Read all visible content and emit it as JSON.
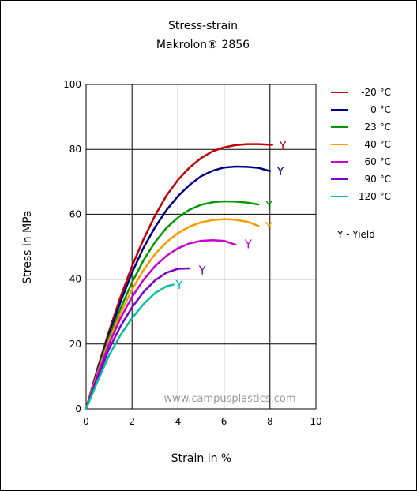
{
  "chart_data": {
    "type": "line",
    "title": "Stress-strain",
    "subtitle": "Makrolon® 2856",
    "xlabel": "Strain in %",
    "ylabel": "Stress in MPa",
    "xlim": [
      0,
      10
    ],
    "ylim": [
      0,
      100
    ],
    "x_ticks": [
      "0",
      "2",
      "4",
      "6",
      "8",
      "10"
    ],
    "y_ticks": [
      "0",
      "20",
      "40",
      "60",
      "80",
      "100"
    ],
    "grid": true,
    "legend_position": "right",
    "yield_marker": "Y",
    "yield_note": "Y - Yield",
    "watermark": "www.campusplastics.com",
    "series": [
      {
        "name": "-20 °C",
        "color": "#c00000",
        "x": [
          0,
          0.5,
          1,
          1.5,
          2,
          2.5,
          3,
          3.5,
          4,
          4.5,
          5,
          5.5,
          6,
          6.5,
          7,
          7.5,
          8.1
        ],
        "y": [
          0,
          12.5,
          24,
          34.5,
          44,
          52.3,
          59.6,
          65.8,
          70.6,
          74.4,
          77.3,
          79.4,
          80.6,
          81.3,
          81.6,
          81.6,
          81.4
        ],
        "yield": [
          8.4,
          81.4
        ]
      },
      {
        "name": "0 °C",
        "color": "#000080",
        "x": [
          0,
          0.5,
          1,
          1.5,
          2,
          2.5,
          3,
          3.5,
          4,
          4.5,
          5,
          5.5,
          6,
          6.5,
          7,
          7.5,
          8
        ],
        "y": [
          0,
          12,
          23,
          33,
          42,
          49.7,
          56,
          61.3,
          65.6,
          69,
          71.7,
          73.4,
          74.4,
          74.7,
          74.6,
          74.3,
          73.3
        ],
        "yield": [
          8.3,
          73.5
        ]
      },
      {
        "name": "23 °C",
        "color": "#009900",
        "x": [
          0,
          0.5,
          1,
          1.5,
          2,
          2.5,
          3,
          3.5,
          4,
          4.5,
          5,
          5.5,
          6,
          6.5,
          7,
          7.5
        ],
        "y": [
          0,
          11.5,
          22,
          31,
          39,
          45.8,
          51.4,
          55.8,
          59,
          61.4,
          62.9,
          63.7,
          64,
          63.9,
          63.6,
          63
        ],
        "yield": [
          7.8,
          63
        ]
      },
      {
        "name": "40 °C",
        "color": "#ff9900",
        "x": [
          0,
          0.5,
          1,
          1.5,
          2,
          2.5,
          3,
          3.5,
          4,
          4.5,
          5,
          5.5,
          6,
          6.5,
          7,
          7.5
        ],
        "y": [
          0,
          11,
          21,
          29.5,
          36.8,
          42.8,
          47.7,
          51.4,
          54.2,
          56.2,
          57.5,
          58.2,
          58.5,
          58.3,
          57.7,
          56.4
        ],
        "yield": [
          7.8,
          56.5
        ]
      },
      {
        "name": "60 °C",
        "color": "#cc00cc",
        "x": [
          0,
          0.5,
          1,
          1.5,
          2,
          2.5,
          3,
          3.5,
          4,
          4.5,
          5,
          5.5,
          6,
          6.5
        ],
        "y": [
          0,
          10.5,
          20,
          28,
          34.5,
          39.8,
          44,
          47.2,
          49.5,
          51,
          51.8,
          52,
          51.8,
          50.6
        ],
        "yield": [
          6.9,
          51
        ]
      },
      {
        "name": "90 °C",
        "color": "#7a00cc",
        "x": [
          0,
          0.5,
          1,
          1.5,
          2,
          2.5,
          3,
          3.5,
          4,
          4.5
        ],
        "y": [
          0,
          9.5,
          18.5,
          25.5,
          31.3,
          36,
          39.6,
          42,
          43.2,
          43.3
        ],
        "yield": [
          4.9,
          43
        ]
      },
      {
        "name": "120 °C",
        "color": "#00c0a0",
        "x": [
          0,
          0.5,
          1,
          1.5,
          2,
          2.5,
          3,
          3.5,
          3.8
        ],
        "y": [
          0,
          8.5,
          16.5,
          22.8,
          28,
          32.3,
          35.7,
          37.8,
          38.3
        ],
        "yield": [
          3.9,
          38.5
        ]
      }
    ]
  }
}
